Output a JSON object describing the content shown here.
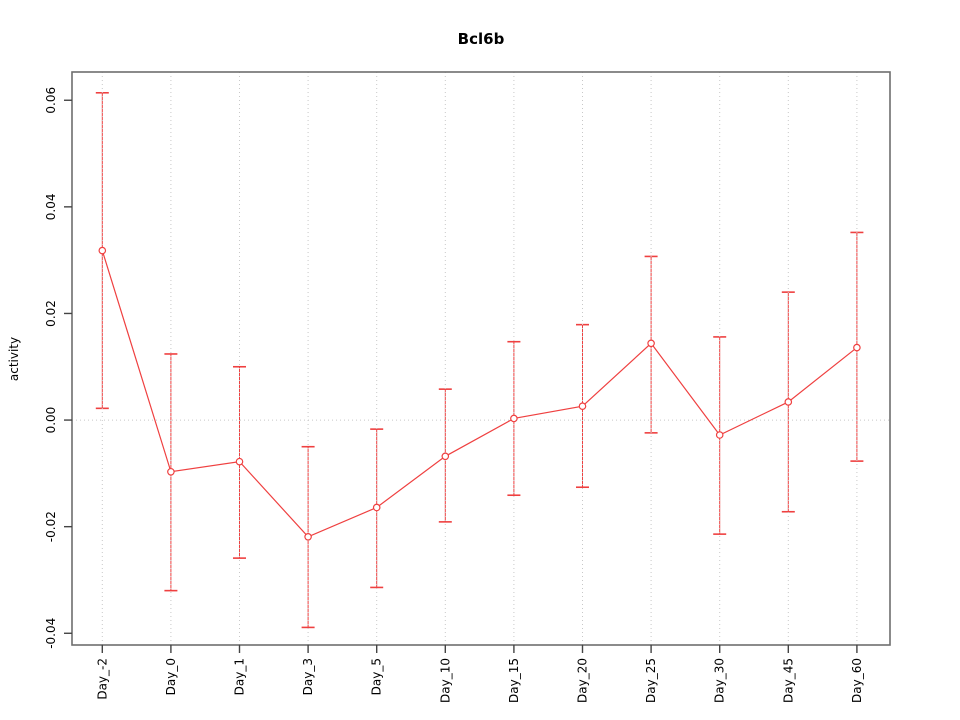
{
  "chart_data": {
    "type": "line",
    "title": "Bcl6b",
    "ylabel": "activity",
    "xlabel": "",
    "legend": null,
    "grid": "vertical dotted gridlines at each category; dotted horizontal line at y=0",
    "categories": [
      "Day_-2",
      "Day_0",
      "Day_1",
      "Day_3",
      "Day_5",
      "Day_10",
      "Day_15",
      "Day_20",
      "Day_25",
      "Day_30",
      "Day_45",
      "Day_60"
    ],
    "series": [
      {
        "name": "activity",
        "marker": "open-circle",
        "values": [
          0.0318,
          -0.0097,
          -0.0078,
          -0.0219,
          -0.0164,
          -0.0068,
          0.0003,
          0.0026,
          0.0144,
          -0.0028,
          0.0034,
          0.0136
        ],
        "lower": [
          0.0022,
          -0.032,
          -0.0259,
          -0.0389,
          -0.0314,
          -0.0191,
          -0.0141,
          -0.0126,
          -0.0024,
          -0.0214,
          -0.0172,
          -0.0077
        ],
        "upper": [
          0.0614,
          0.0124,
          0.01,
          -0.005,
          -0.0017,
          0.0058,
          0.0147,
          0.0179,
          0.0307,
          0.0156,
          0.024,
          0.0352
        ]
      }
    ],
    "yticks": [
      0.06,
      0.04,
      0.02,
      0.0,
      -0.02,
      -0.04
    ],
    "ytick_labels": [
      "0.06",
      "0.04",
      "0.02",
      "0.00",
      "-0.02",
      "-0.04"
    ],
    "ylim": [
      -0.0422,
      0.0653
    ],
    "colors": {
      "series": "#ef4040",
      "grid": "#c8c8c8",
      "zero_line": "#c8c8c8",
      "box": "#6e6e6e",
      "tick": "#444444",
      "text": "#000000",
      "marker_fill": "#ffffff"
    }
  }
}
